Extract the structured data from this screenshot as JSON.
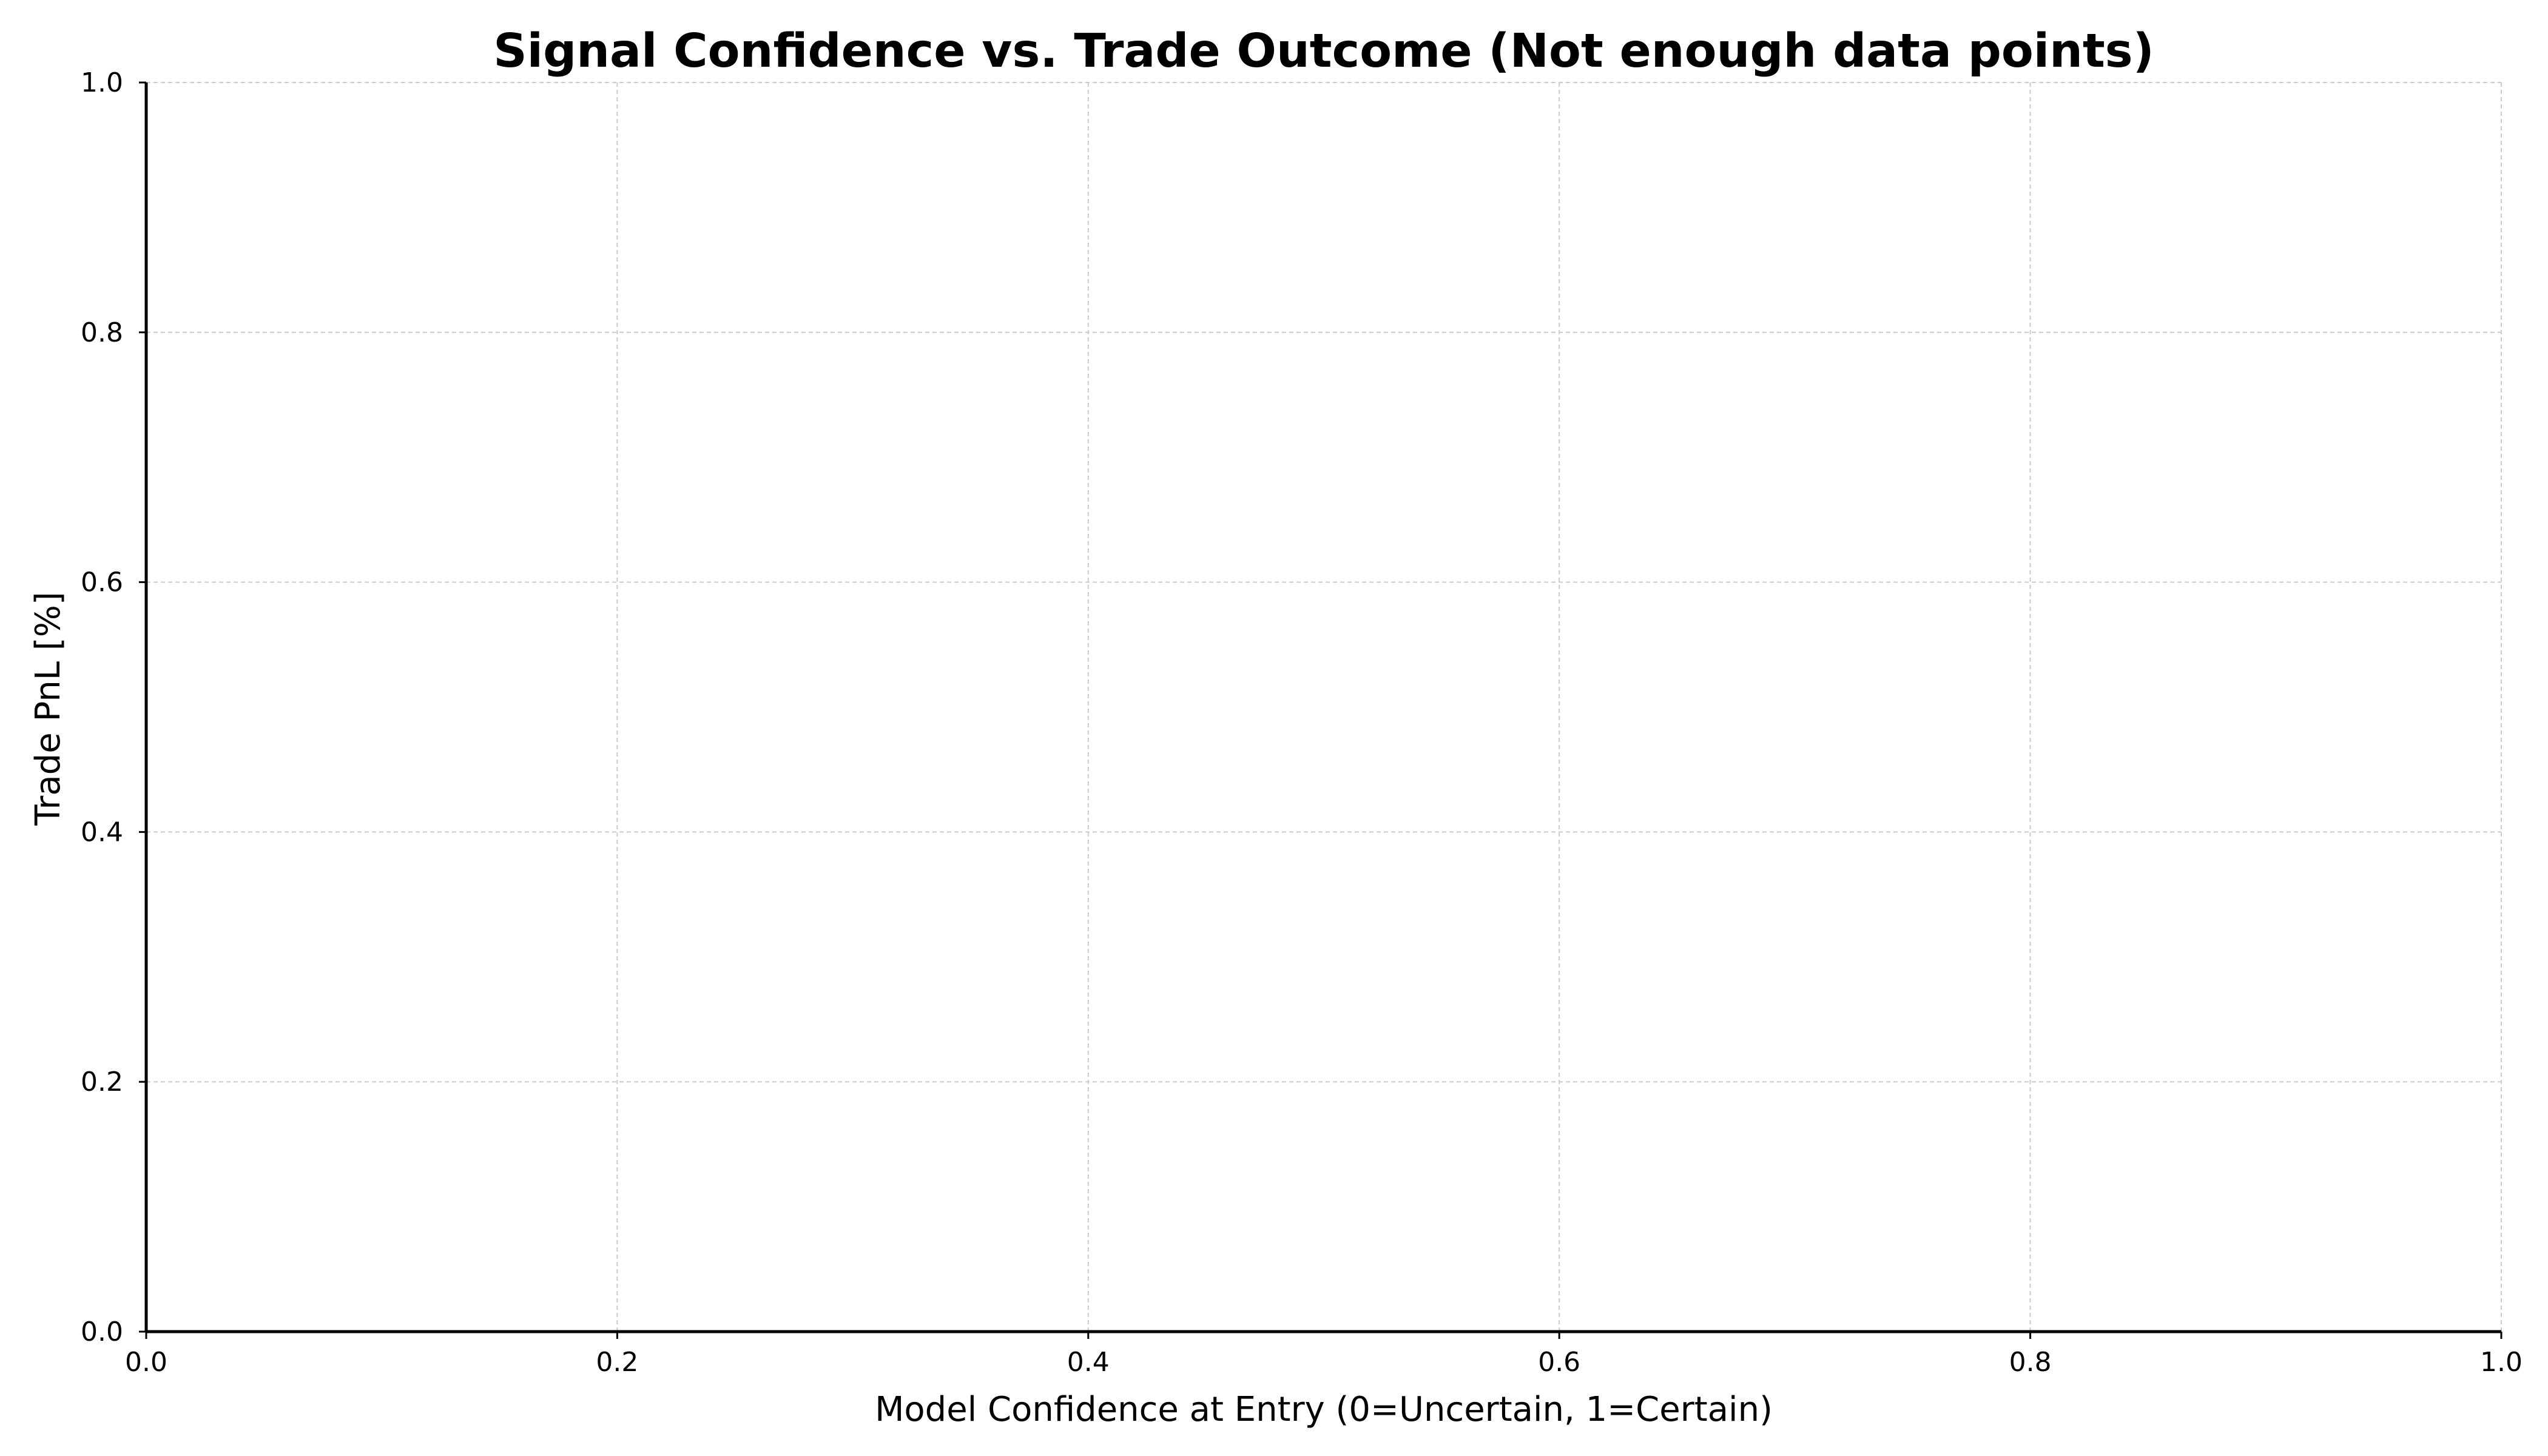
{
  "chart_data": {
    "type": "scatter",
    "title": "Signal Confidence vs. Trade Outcome (Not enough data points)",
    "xlabel": "Model Confidence at Entry (0=Uncertain, 1=Certain)",
    "ylabel": "Trade PnL [%]",
    "xlim": [
      0,
      1
    ],
    "ylim": [
      0,
      1
    ],
    "x_ticks": [
      "0.0",
      "0.2",
      "0.4",
      "0.6",
      "0.8",
      "1.0"
    ],
    "y_ticks": [
      "0.0",
      "0.2",
      "0.4",
      "0.6",
      "0.8",
      "1.0"
    ],
    "grid": true,
    "legend": null,
    "series": [],
    "colors": {
      "grid": "#cccccc",
      "axis": "#000000"
    }
  }
}
